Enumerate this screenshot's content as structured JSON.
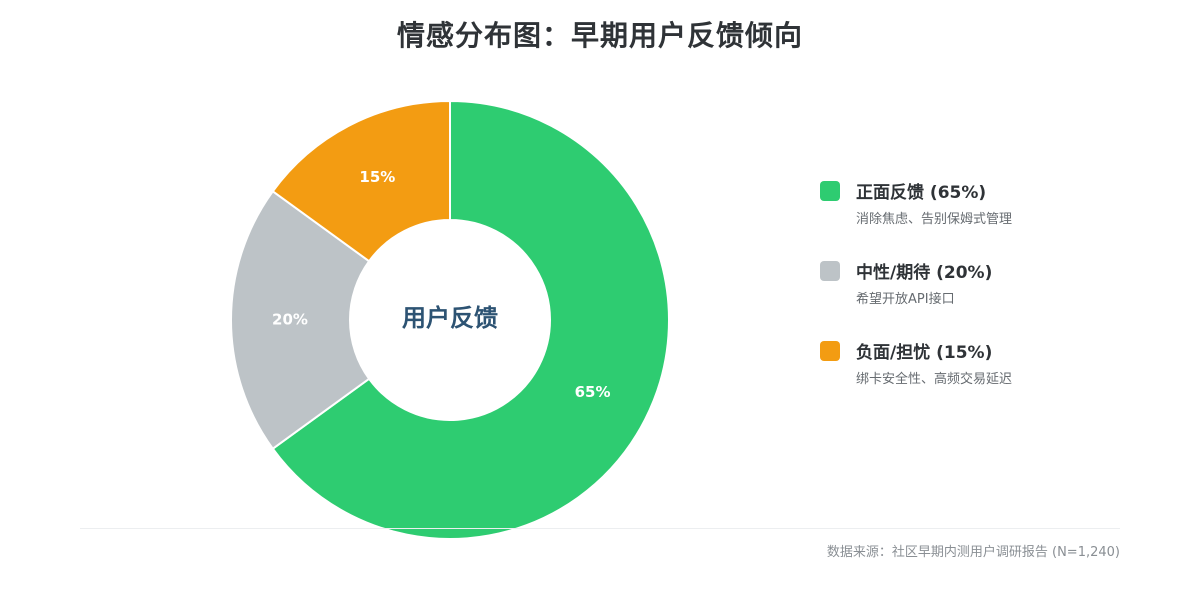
{
  "chart_title": "情感分布图：早期用户反馈倾向",
  "center_label": "用户反馈",
  "source_note": "数据来源：社区早期内测用户调研报告 (N=1,240)",
  "colors": {
    "positive": "#2ecc71",
    "neutral": "#bdc3c7",
    "negative": "#f39c12"
  },
  "legend": [
    {
      "title": "正面反馈 (65%)",
      "desc": "消除焦虑、告别保姆式管理",
      "color": "#2ecc71"
    },
    {
      "title": "中性/期待 (20%)",
      "desc": "希望开放API接口",
      "color": "#bdc3c7"
    },
    {
      "title": "负面/担忧 (15%)",
      "desc": "绑卡安全性、高频交易延迟",
      "color": "#f39c12"
    }
  ],
  "chart_data": {
    "type": "pie",
    "title": "情感分布图：早期用户反馈倾向",
    "center_text": "用户反馈",
    "categories": [
      "正面反馈",
      "中性/期待",
      "负面/担忧"
    ],
    "values": [
      65,
      20,
      15
    ],
    "data_labels": [
      "65%",
      "20%",
      "15%"
    ],
    "colors": [
      "#2ecc71",
      "#bdc3c7",
      "#f39c12"
    ],
    "donut": true,
    "start_angle": "top",
    "direction": "clockwise",
    "legend_position": "right"
  }
}
